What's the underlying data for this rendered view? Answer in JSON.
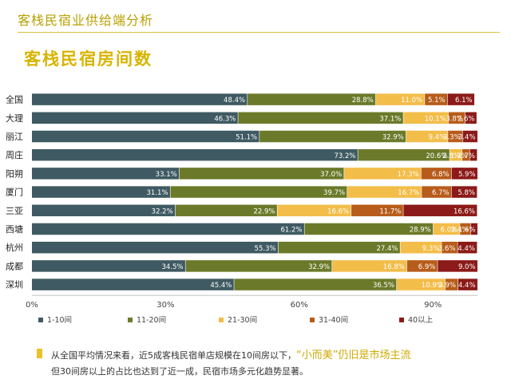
{
  "page": {
    "title": "客栈民宿业供给端分析",
    "chart_heading": "客栈民宿房间数"
  },
  "note": {
    "line1_prefix": "从全国平均情况来看，近5成客栈民宿单店规模在10间房以下，",
    "line1_highlight": "“小而美”仍旧是市场主流",
    "line2": "但30间房以上的占比也达到了近一成，民宿市场多元化趋势显著。"
  },
  "colors": {
    "accent": "#d8b400",
    "series": [
      "#3f5a62",
      "#6b7a2a",
      "#f3bd4a",
      "#b85c1b",
      "#8b1a18"
    ]
  },
  "chart_data": {
    "type": "bar",
    "orientation": "horizontal",
    "stacked": true,
    "categories": [
      "全国",
      "大理",
      "丽江",
      "周庄",
      "阳朔",
      "厦门",
      "三亚",
      "西塘",
      "杭州",
      "成都",
      "深圳"
    ],
    "series": [
      {
        "name": "1-10间",
        "values": [
          48.4,
          46.3,
          51.1,
          73.2,
          33.1,
          31.1,
          32.2,
          61.2,
          55.3,
          34.5,
          45.4
        ]
      },
      {
        "name": "11-20间",
        "values": [
          28.8,
          37.1,
          32.9,
          20.6,
          37.0,
          39.7,
          22.9,
          28.9,
          27.4,
          32.9,
          36.5
        ]
      },
      {
        "name": "21-30间",
        "values": [
          11.0,
          10.1,
          9.4,
          2.8,
          17.3,
          16.7,
          16.6,
          6.0,
          9.3,
          16.8,
          10.9
        ]
      },
      {
        "name": "31-40间",
        "values": [
          5.1,
          3.8,
          3.3,
          1.7,
          6.8,
          6.7,
          11.7,
          2.4,
          3.6,
          6.9,
          2.9
        ]
      },
      {
        "name": "40以上",
        "values": [
          6.1,
          2.6,
          3.4,
          1.7,
          5.9,
          5.8,
          16.6,
          1.6,
          4.4,
          9.0,
          4.4
        ]
      }
    ],
    "labels": [
      [
        "48.4%",
        "28.8%",
        "11.0%",
        "5.1%",
        "6.1%"
      ],
      [
        "46.3%",
        "37.1%",
        "10.1%",
        "3.8%",
        "2.6%"
      ],
      [
        "51.1%",
        "32.9%",
        "9.4%",
        "3.3%",
        "3.4%"
      ],
      [
        "73.2%",
        "20.6%",
        "2.8%",
        "1.7%",
        "1.7%"
      ],
      [
        "33.1%",
        "37.0%",
        "17.3%",
        "6.8%",
        "5.9%"
      ],
      [
        "31.1%",
        "39.7%",
        "16.7%",
        "6.7%",
        "5.8%"
      ],
      [
        "32.2%",
        "22.9%",
        "16.6%",
        "11.7%",
        "16.6%"
      ],
      [
        "61.2%",
        "28.9%",
        "6.0%",
        "2.4%",
        "1.6%"
      ],
      [
        "55.3%",
        "27.4%",
        "9.3%",
        "3.6%",
        "4.4%"
      ],
      [
        "34.5%",
        "32.9%",
        "16.8%",
        "6.9%",
        "9.0%"
      ],
      [
        "45.4%",
        "36.5%",
        "10.9%",
        "2.9%",
        "4.4%"
      ]
    ],
    "x_ticks": [
      "0%",
      "30%",
      "60%",
      "90%"
    ],
    "x_tick_values": [
      0,
      30,
      60,
      90
    ],
    "xlim": [
      0,
      100
    ],
    "legend": [
      "1-10间",
      "11-20间",
      "21-30间",
      "31-40间",
      "40以上"
    ],
    "legend_position": "bottom"
  }
}
